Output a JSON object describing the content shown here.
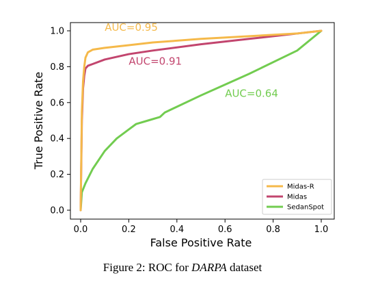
{
  "chart_data": {
    "type": "line",
    "title": "",
    "xlabel": "False Positive Rate",
    "ylabel": "True Positive Rate",
    "xlim": [
      0.0,
      1.0
    ],
    "ylim": [
      0.0,
      1.0
    ],
    "xticks": [
      "0.0",
      "0.2",
      "0.4",
      "0.6",
      "0.8",
      "1.0"
    ],
    "yticks": [
      "0.0",
      "0.2",
      "0.4",
      "0.6",
      "0.8",
      "1.0"
    ],
    "grid": false,
    "legend_position": "bottom-right",
    "series": [
      {
        "name": "Midas-R",
        "color": "#f5b94a",
        "x": [
          0.0,
          0.005,
          0.01,
          0.015,
          0.02,
          0.03,
          0.05,
          0.1,
          0.2,
          0.3,
          0.5,
          0.7,
          0.9,
          1.0
        ],
        "y": [
          0.0,
          0.55,
          0.72,
          0.8,
          0.85,
          0.88,
          0.895,
          0.905,
          0.92,
          0.935,
          0.955,
          0.97,
          0.985,
          1.0
        ]
      },
      {
        "name": "Midas",
        "color": "#c2456e",
        "x": [
          0.0,
          0.005,
          0.01,
          0.015,
          0.02,
          0.03,
          0.05,
          0.1,
          0.2,
          0.3,
          0.5,
          0.7,
          0.9,
          1.0
        ],
        "y": [
          0.0,
          0.5,
          0.68,
          0.75,
          0.79,
          0.805,
          0.815,
          0.84,
          0.87,
          0.89,
          0.925,
          0.955,
          0.985,
          1.0
        ]
      },
      {
        "name": "SedanSpot",
        "color": "#72cc50",
        "x": [
          0.0,
          0.005,
          0.02,
          0.05,
          0.1,
          0.15,
          0.2,
          0.23,
          0.28,
          0.33,
          0.35,
          0.5,
          0.7,
          0.9,
          1.0
        ],
        "y": [
          0.0,
          0.1,
          0.15,
          0.23,
          0.33,
          0.4,
          0.45,
          0.48,
          0.5,
          0.52,
          0.545,
          0.64,
          0.76,
          0.89,
          1.0
        ]
      }
    ],
    "annotations": [
      {
        "text": "AUC=0.95",
        "x": 0.1,
        "y": 1.02,
        "color": "#f5b94a"
      },
      {
        "text": "AUC=0.91",
        "x": 0.2,
        "y": 0.83,
        "color": "#c2456e"
      },
      {
        "text": "AUC=0.64",
        "x": 0.6,
        "y": 0.65,
        "color": "#72cc50"
      }
    ]
  },
  "caption": {
    "prefix": "Figure 2:  ROC for ",
    "emphasis": "DARPA",
    "suffix": " dataset"
  }
}
